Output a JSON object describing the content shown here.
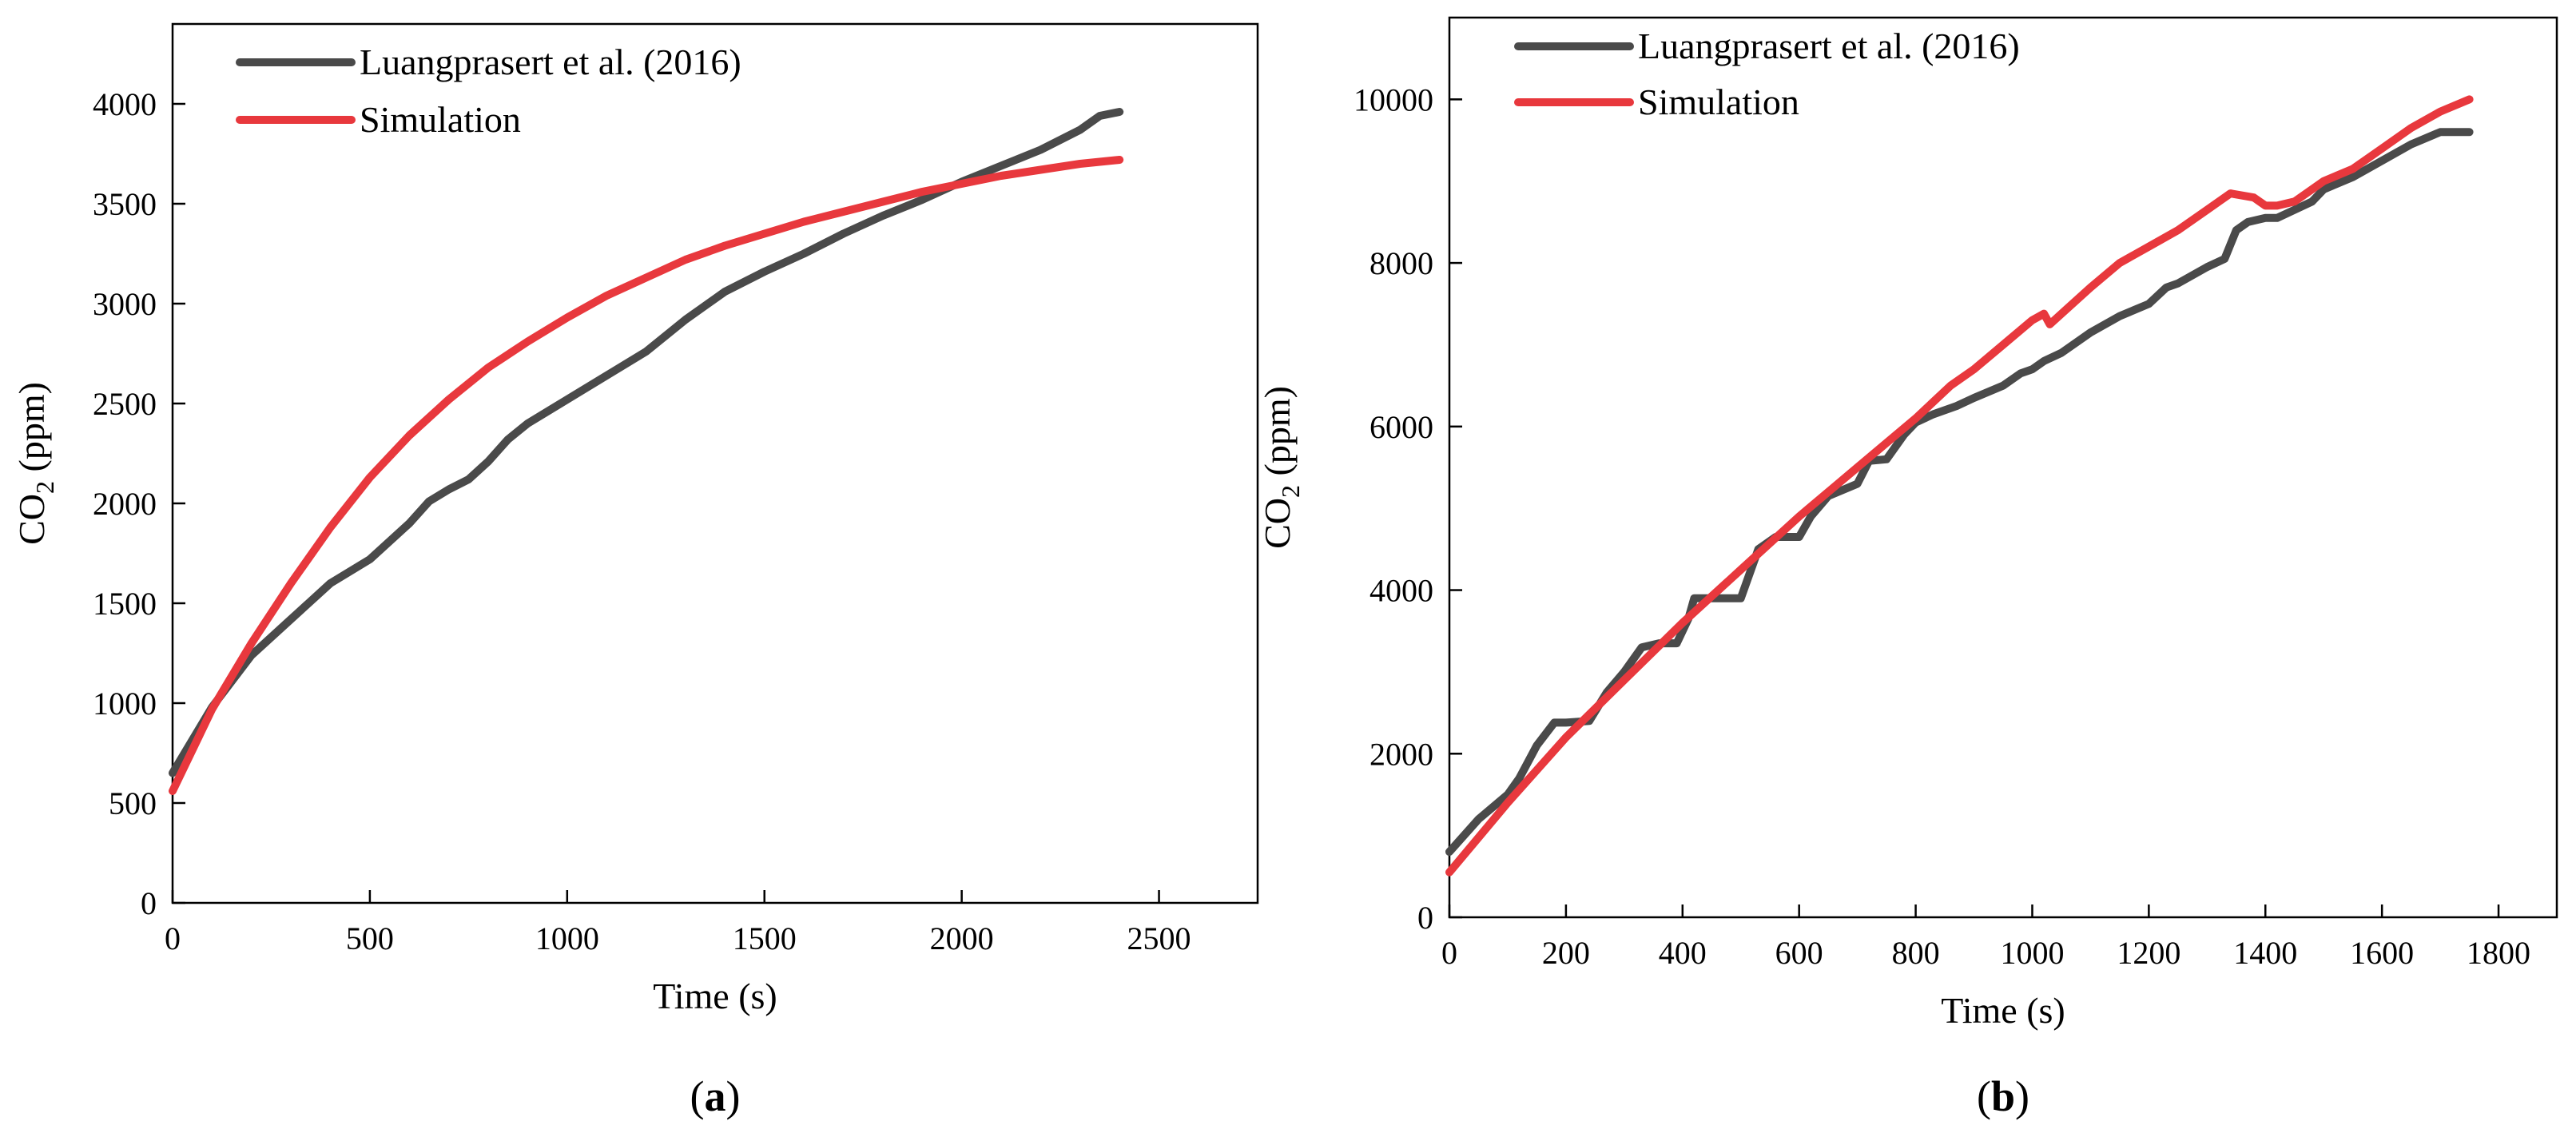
{
  "chart_data": [
    {
      "type": "line",
      "panel_label": "a",
      "title": "",
      "xlabel": "Time (s)",
      "ylabel_main": "CO",
      "ylabel_sub": "2",
      "ylabel_unit": " (ppm)",
      "xlim": [
        0,
        2750
      ],
      "ylim": [
        0,
        4400
      ],
      "xticks": [
        0,
        500,
        1000,
        1500,
        2000,
        2500
      ],
      "yticks": [
        0,
        500,
        1000,
        1500,
        2000,
        2500,
        3000,
        3500,
        4000
      ],
      "legend_position": "top-left",
      "series": [
        {
          "name": "Luangprasert et al. (2016)",
          "color": "#4a4a4a",
          "x": [
            0,
            100,
            200,
            300,
            400,
            500,
            600,
            650,
            700,
            750,
            800,
            850,
            900,
            1000,
            1100,
            1200,
            1300,
            1400,
            1500,
            1600,
            1700,
            1800,
            1900,
            2000,
            2100,
            2200,
            2300,
            2350,
            2400
          ],
          "y": [
            650,
            980,
            1240,
            1420,
            1600,
            1720,
            1900,
            2010,
            2070,
            2120,
            2210,
            2320,
            2400,
            2520,
            2640,
            2760,
            2920,
            3060,
            3160,
            3250,
            3350,
            3440,
            3520,
            3610,
            3690,
            3770,
            3870,
            3940,
            3960
          ]
        },
        {
          "name": "Simulation",
          "color": "#e8383d",
          "x": [
            0,
            100,
            200,
            300,
            400,
            500,
            600,
            700,
            800,
            900,
            1000,
            1100,
            1200,
            1300,
            1400,
            1500,
            1600,
            1700,
            1800,
            1900,
            2000,
            2100,
            2200,
            2300,
            2400
          ],
          "y": [
            560,
            970,
            1300,
            1600,
            1880,
            2130,
            2340,
            2520,
            2680,
            2810,
            2930,
            3040,
            3130,
            3220,
            3290,
            3350,
            3410,
            3460,
            3510,
            3560,
            3600,
            3640,
            3670,
            3700,
            3720
          ]
        }
      ]
    },
    {
      "type": "line",
      "panel_label": "b",
      "title": "",
      "xlabel": "Time (s)",
      "ylabel_main": "CO",
      "ylabel_sub": "2",
      "ylabel_unit": " (ppm)",
      "xlim": [
        0,
        1900
      ],
      "ylim": [
        0,
        11000
      ],
      "xticks": [
        0,
        200,
        400,
        600,
        800,
        1000,
        1200,
        1400,
        1600,
        1800
      ],
      "yticks": [
        0,
        2000,
        4000,
        6000,
        8000,
        10000
      ],
      "legend_position": "top-left",
      "series": [
        {
          "name": "Luangprasert et al. (2016)",
          "color": "#4a4a4a",
          "x": [
            0,
            50,
            100,
            120,
            150,
            180,
            200,
            240,
            270,
            300,
            330,
            360,
            390,
            410,
            420,
            450,
            480,
            500,
            510,
            530,
            560,
            600,
            620,
            650,
            700,
            720,
            750,
            780,
            800,
            830,
            870,
            900,
            950,
            980,
            1000,
            1020,
            1050,
            1100,
            1150,
            1200,
            1230,
            1250,
            1300,
            1330,
            1350,
            1370,
            1400,
            1420,
            1450,
            1480,
            1500,
            1550,
            1600,
            1650,
            1700,
            1750
          ],
          "y": [
            800,
            1200,
            1500,
            1700,
            2100,
            2380,
            2380,
            2400,
            2750,
            3000,
            3300,
            3350,
            3350,
            3650,
            3900,
            3900,
            3900,
            3900,
            4100,
            4500,
            4650,
            4650,
            4900,
            5150,
            5300,
            5580,
            5600,
            5900,
            6050,
            6150,
            6250,
            6350,
            6500,
            6650,
            6700,
            6800,
            6900,
            7150,
            7350,
            7500,
            7700,
            7750,
            7950,
            8050,
            8400,
            8500,
            8550,
            8550,
            8650,
            8750,
            8900,
            9050,
            9250,
            9450,
            9600,
            9600
          ]
        },
        {
          "name": "Simulation",
          "color": "#e8383d",
          "x": [
            0,
            100,
            200,
            300,
            400,
            500,
            600,
            700,
            800,
            860,
            900,
            950,
            1000,
            1020,
            1030,
            1100,
            1150,
            1200,
            1250,
            1300,
            1340,
            1380,
            1400,
            1420,
            1450,
            1480,
            1500,
            1550,
            1600,
            1650,
            1700,
            1750
          ],
          "y": [
            550,
            1400,
            2200,
            2900,
            3600,
            4250,
            4900,
            5500,
            6100,
            6500,
            6700,
            7000,
            7300,
            7380,
            7250,
            7700,
            8000,
            8200,
            8400,
            8650,
            8850,
            8800,
            8700,
            8700,
            8750,
            8900,
            9000,
            9150,
            9400,
            9650,
            9850,
            10000
          ]
        }
      ]
    }
  ]
}
